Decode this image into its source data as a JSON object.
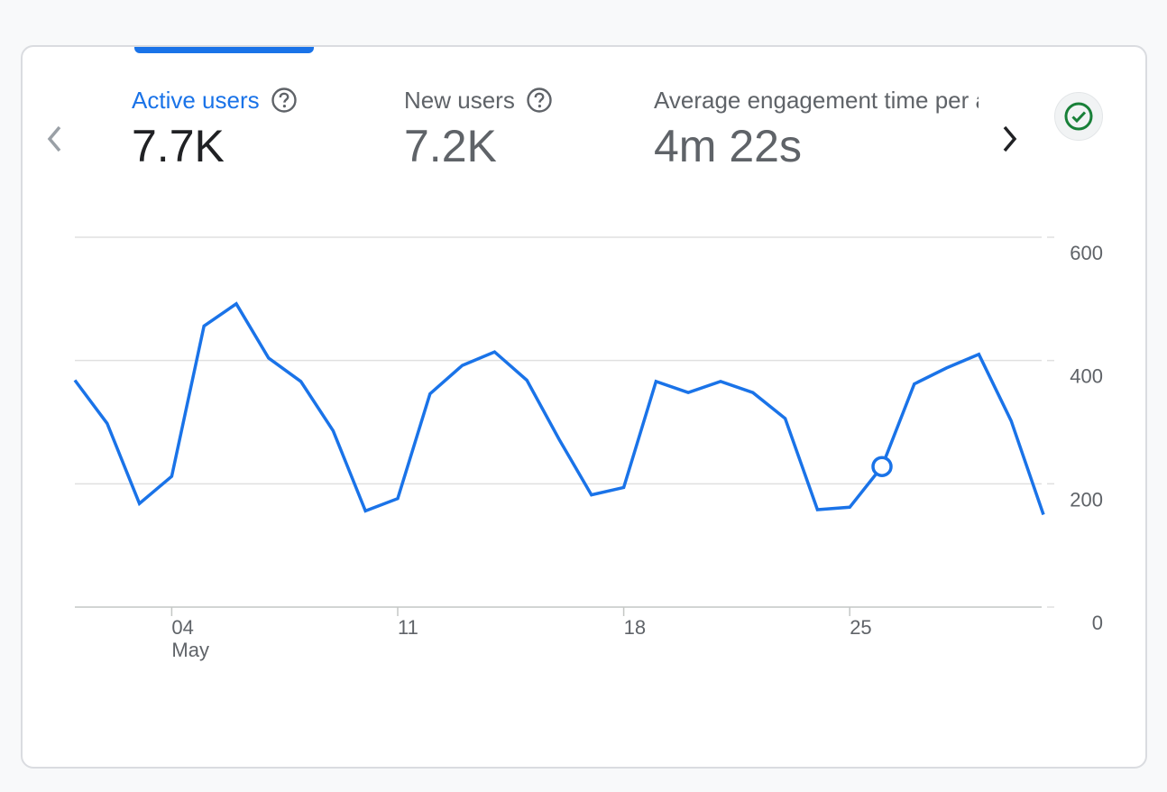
{
  "metrics": [
    {
      "label": "Active users",
      "value": "7.7K",
      "selected": true
    },
    {
      "label": "New users",
      "value": "7.2K",
      "selected": false
    },
    {
      "label": "Average engagement time per active user",
      "value": "4m 22s",
      "selected": false
    }
  ],
  "icons": {
    "help": "help-circle-icon",
    "prev": "chevron-left-icon",
    "next": "chevron-right-icon",
    "status": "check-circle-icon"
  },
  "colors": {
    "accent": "#1a73e8",
    "line": "#1a73e8",
    "status_ok": "#188038",
    "grid": "#e0e0e0",
    "text_secondary": "#5f6368"
  },
  "chart_data": {
    "type": "line",
    "title": "",
    "xlabel": "",
    "ylabel": "Active users",
    "ylim": [
      0,
      600
    ],
    "yticks": [
      0,
      200,
      400,
      600
    ],
    "x_tick_labels": [
      {
        "day": 4,
        "label": "04",
        "sublabel": "May"
      },
      {
        "day": 11,
        "label": "11",
        "sublabel": ""
      },
      {
        "day": 18,
        "label": "18",
        "sublabel": ""
      },
      {
        "day": 25,
        "label": "25",
        "sublabel": ""
      }
    ],
    "series": [
      {
        "name": "Active users",
        "x": [
          1,
          2,
          3,
          4,
          5,
          6,
          7,
          8,
          9,
          10,
          11,
          12,
          13,
          14,
          15,
          16,
          17,
          18,
          19,
          20,
          21,
          22,
          23,
          24,
          25,
          26,
          27,
          28,
          29,
          30,
          31
        ],
        "values": [
          368,
          298,
          168,
          212,
          456,
          492,
          404,
          366,
          286,
          156,
          176,
          346,
          392,
          414,
          368,
          272,
          182,
          194,
          366,
          348,
          366,
          348,
          306,
          158,
          162,
          228,
          362,
          388,
          410,
          302,
          150
        ],
        "highlight_index": 25
      }
    ]
  }
}
